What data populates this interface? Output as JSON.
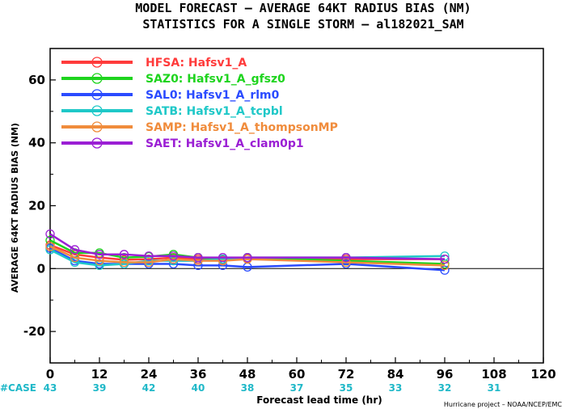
{
  "title_line1": "MODEL FORECAST – AVERAGE 64KT RADIUS BIAS (NM)",
  "title_line2": "STATISTICS FOR A SINGLE STORM – al182021_SAM",
  "case_label": "#CASE",
  "credit": "Hurricane project – NOAA/NCEP/EMC",
  "colors": {
    "case_text": "#1fb8c8",
    "zero_line": "#000000"
  },
  "chart_data": {
    "type": "line",
    "xlabel": "Forecast lead time (hr)",
    "ylabel": "AVERAGE 64KT RADIUS BIAS (NM)",
    "xlim": [
      0,
      120
    ],
    "ylim": [
      -30,
      70
    ],
    "xticks": [
      0,
      12,
      24,
      36,
      48,
      60,
      72,
      84,
      96,
      108,
      120
    ],
    "yticks": [
      -20,
      0,
      20,
      40,
      60
    ],
    "case_counts": [
      "43",
      "39",
      "42",
      "40",
      "38",
      "37",
      "35",
      "33",
      "32",
      "31"
    ],
    "legend_position": "top-left",
    "series": [
      {
        "name": "HFSA: Hafsv1_A",
        "color": "#ff3b3b",
        "points": [
          [
            0,
            7.5
          ],
          [
            6,
            4.5
          ],
          [
            12,
            3.5
          ],
          [
            18,
            2.8
          ],
          [
            24,
            3.0
          ],
          [
            30,
            3.5
          ],
          [
            36,
            3.0
          ],
          [
            42,
            2.8
          ],
          [
            48,
            3.2
          ],
          [
            72,
            3.0
          ],
          [
            96,
            3.0
          ]
        ]
      },
      {
        "name": "SAZ0: Hafsv1_A_gfsz0",
        "color": "#1ed41e",
        "points": [
          [
            0,
            9.0
          ],
          [
            6,
            5.0
          ],
          [
            12,
            5.0
          ],
          [
            18,
            3.5
          ],
          [
            24,
            3.8
          ],
          [
            30,
            4.5
          ],
          [
            36,
            3.5
          ],
          [
            42,
            3.0
          ],
          [
            48,
            3.5
          ],
          [
            72,
            2.5
          ],
          [
            96,
            1.5
          ]
        ]
      },
      {
        "name": "SAL0: Hafsv1_A_rlm0",
        "color": "#2a4bff",
        "points": [
          [
            0,
            6.5
          ],
          [
            6,
            2.5
          ],
          [
            12,
            1.5
          ],
          [
            18,
            1.5
          ],
          [
            24,
            1.5
          ],
          [
            30,
            1.5
          ],
          [
            36,
            1.0
          ],
          [
            42,
            1.0
          ],
          [
            48,
            0.5
          ],
          [
            72,
            1.5
          ],
          [
            96,
            -0.5
          ]
        ]
      },
      {
        "name": "SATB: Hafsv1_A_tcpbl",
        "color": "#1fc8c8",
        "points": [
          [
            0,
            6.0
          ],
          [
            6,
            2.0
          ],
          [
            12,
            1.0
          ],
          [
            18,
            1.5
          ],
          [
            24,
            2.5
          ],
          [
            30,
            2.5
          ],
          [
            36,
            2.5
          ],
          [
            42,
            3.0
          ],
          [
            48,
            3.5
          ],
          [
            72,
            3.5
          ],
          [
            96,
            4.0
          ]
        ]
      },
      {
        "name": "SAMP: Hafsv1_A_thompsonMP",
        "color": "#f08c3c",
        "points": [
          [
            0,
            7.0
          ],
          [
            6,
            3.5
          ],
          [
            12,
            2.5
          ],
          [
            18,
            2.0
          ],
          [
            24,
            2.0
          ],
          [
            30,
            3.0
          ],
          [
            36,
            2.5
          ],
          [
            42,
            2.5
          ],
          [
            48,
            3.0
          ],
          [
            72,
            2.0
          ],
          [
            96,
            1.0
          ]
        ]
      },
      {
        "name": "SAET: Hafsv1_A_clam0p1",
        "color": "#9b1fd4",
        "points": [
          [
            0,
            11.0
          ],
          [
            6,
            6.0
          ],
          [
            12,
            4.5
          ],
          [
            18,
            4.5
          ],
          [
            24,
            4.0
          ],
          [
            30,
            4.0
          ],
          [
            36,
            3.5
          ],
          [
            42,
            3.5
          ],
          [
            48,
            3.5
          ],
          [
            72,
            3.5
          ],
          [
            96,
            3.0
          ]
        ]
      }
    ]
  }
}
